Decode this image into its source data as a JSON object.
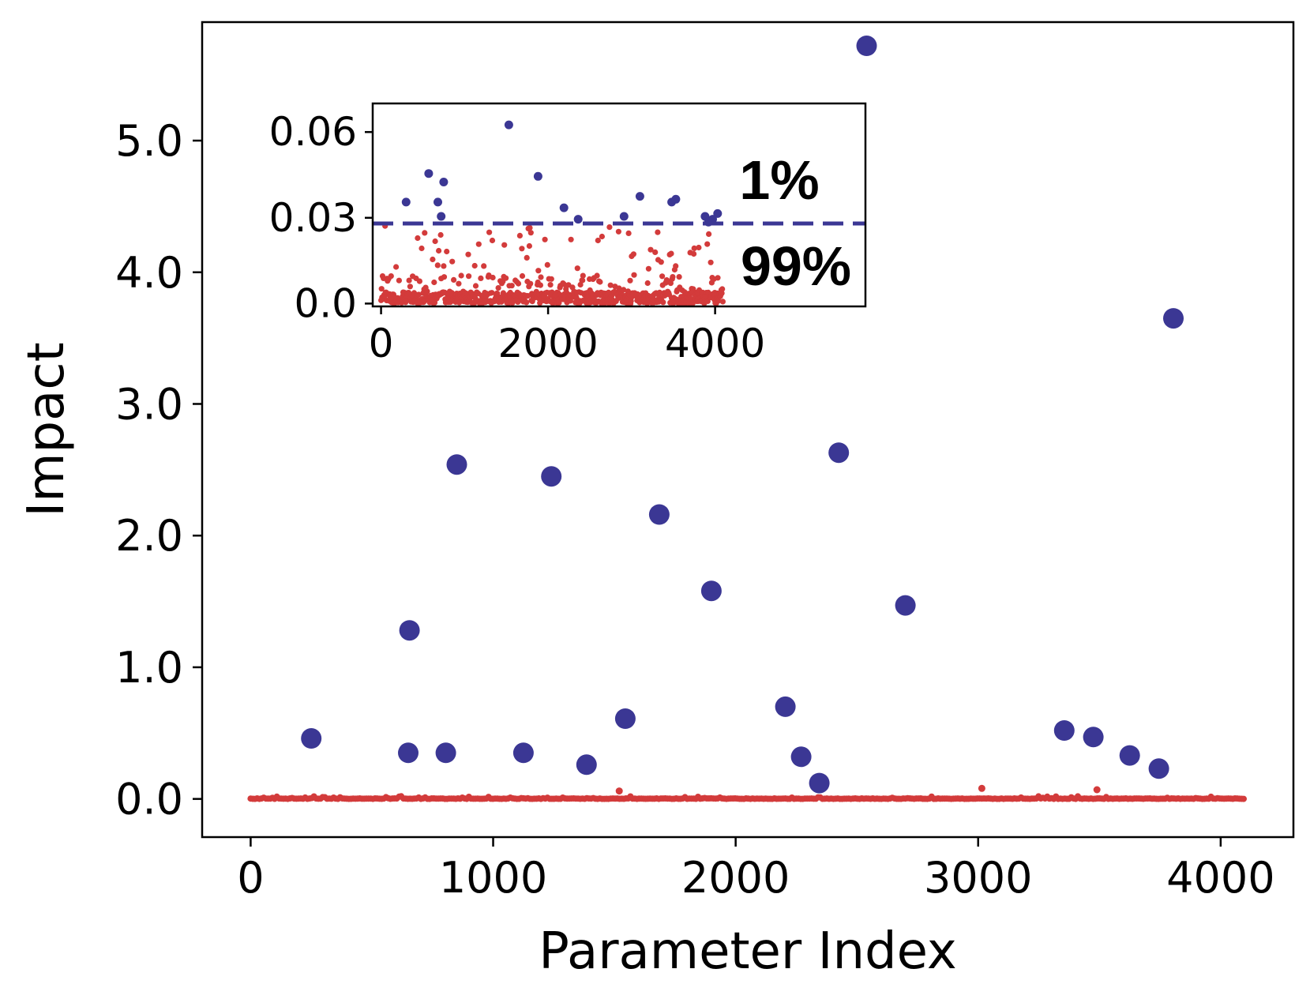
{
  "colors": {
    "top": "#3b3794",
    "rest": "#d33b3b",
    "axis": "#000000",
    "background": "#ffffff"
  },
  "chart_data": [
    {
      "type": "scatter",
      "title": "",
      "xlabel": "Parameter Index",
      "ylabel": "Impact",
      "xlim": [
        -200,
        4300
      ],
      "ylim": [
        -0.29,
        5.9
      ],
      "xticks": [
        0,
        1000,
        2000,
        3000,
        4000
      ],
      "xtick_labels": [
        "0",
        "1000",
        "2000",
        "3000",
        "4000"
      ],
      "yticks": [
        0,
        1,
        2,
        3,
        4,
        5
      ],
      "ytick_labels": [
        "0.0",
        "1.0",
        "2.0",
        "3.0",
        "4.0",
        "5.0"
      ],
      "grid": false,
      "legend": "none",
      "series": [
        {
          "color": "#3b3794",
          "marker": "large-dot",
          "x": [
            250,
            650,
            655,
            805,
            850,
            1125,
            1240,
            1385,
            1545,
            1685,
            1900,
            2205,
            2270,
            2345,
            2425,
            2540,
            2700,
            3355,
            3475,
            3625,
            3745,
            3805
          ],
          "y": [
            0.46,
            0.35,
            1.28,
            0.35,
            2.54,
            0.35,
            2.45,
            0.26,
            0.61,
            2.16,
            1.58,
            0.7,
            0.32,
            0.12,
            2.63,
            5.72,
            1.47,
            0.52,
            0.47,
            0.33,
            0.23,
            3.65
          ]
        },
        {
          "color": "#d33b3b",
          "marker": "small-dot",
          "x_range": [
            0,
            4095
          ],
          "y_baseline": 0.0,
          "note_points_x": [
            1520,
            3015,
            3490
          ],
          "note_points_y": [
            0.06,
            0.08,
            0.07
          ]
        }
      ]
    },
    {
      "type": "scatter",
      "title": "",
      "xlabel": "",
      "ylabel": "",
      "xlim": [
        -100,
        5800
      ],
      "ylim": [
        -0.001,
        0.07
      ],
      "xticks": [
        0,
        2000,
        4000
      ],
      "xtick_labels": [
        "0",
        "2000",
        "4000"
      ],
      "yticks": [
        0.0,
        0.03,
        0.06
      ],
      "ytick_labels": [
        "0.0",
        "0.03",
        "0.06"
      ],
      "grid": false,
      "legend": "none",
      "threshold": 0.028,
      "annotations": [
        {
          "text": "1%",
          "color": "#3b3794"
        },
        {
          "text": "99%",
          "color": "#d33b3b"
        }
      ],
      "series": [
        {
          "color": "#3b3794",
          "marker": "dot",
          "x": [
            300,
            570,
            680,
            720,
            750,
            1530,
            1880,
            2190,
            2360,
            2910,
            3100,
            3480,
            3530,
            3880,
            3920,
            3970,
            4030
          ],
          "y": [
            0.0355,
            0.0455,
            0.0355,
            0.0305,
            0.0425,
            0.0625,
            0.0445,
            0.0335,
            0.0295,
            0.0305,
            0.0375,
            0.0355,
            0.0365,
            0.0305,
            0.0285,
            0.0295,
            0.0315
          ]
        },
        {
          "color": "#d33b3b",
          "marker": "small-dot",
          "x_range": [
            0,
            4095
          ],
          "y_range": [
            0.0,
            0.0275
          ]
        }
      ]
    }
  ]
}
